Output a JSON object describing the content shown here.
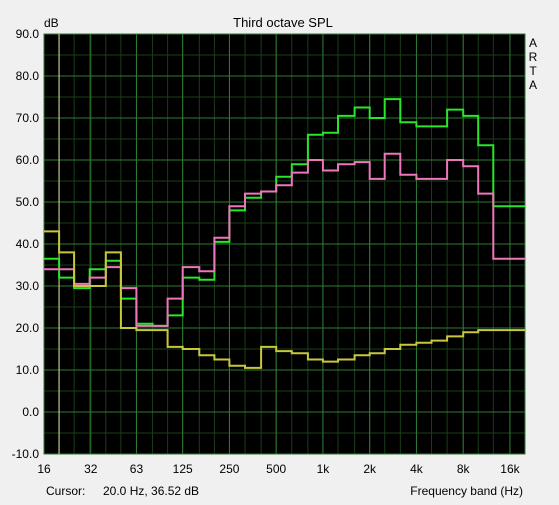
{
  "window": {
    "cursor_label": "Cursor:",
    "cursor_value": "20.0 Hz, 36.52 dB"
  },
  "colors": {
    "background": "#f0f0f0",
    "plot_background": "#000000",
    "grid_major": "#2e7d32",
    "grid_minor": "#173f17",
    "series_green": "#29e629",
    "series_pink": "#ee77bb",
    "series_yellow": "#c8c83c",
    "cursor_line": "#e6e6a0"
  },
  "chart_data": {
    "type": "line",
    "step": true,
    "title": "Third octave SPL",
    "ylabel": "dB",
    "xlabel": "Frequency band (Hz)",
    "xscale": "log",
    "xlim": [
      16,
      20000
    ],
    "ylim": [
      -10,
      90
    ],
    "grid": true,
    "brand_letters": [
      "A",
      "R",
      "T",
      "A"
    ],
    "yticks": [
      -10,
      0,
      10,
      20,
      30,
      40,
      50,
      60,
      70,
      80,
      90
    ],
    "ytick_labels": [
      "-10.0",
      "0.0",
      "10.0",
      "20.0",
      "30.0",
      "40.0",
      "50.0",
      "60.0",
      "70.0",
      "80.0",
      "90.0"
    ],
    "xticks": [
      16,
      32,
      63,
      125,
      250,
      500,
      1000,
      2000,
      4000,
      8000,
      16000
    ],
    "xtick_labels": [
      "16",
      "32",
      "63",
      "125",
      "250",
      "500",
      "1k",
      "2k",
      "4k",
      "8k",
      "16k"
    ],
    "cursor_x": 20,
    "bands": [
      16,
      20,
      25,
      31.5,
      40,
      50,
      63,
      80,
      100,
      125,
      160,
      200,
      250,
      315,
      400,
      500,
      630,
      800,
      1000,
      1250,
      1600,
      2000,
      2500,
      3150,
      4000,
      5000,
      6300,
      8000,
      10000,
      12500,
      16000,
      20000
    ],
    "series": [
      {
        "color": "#29e629",
        "values": [
          36.5,
          32,
          29.5,
          34,
          36,
          27,
          21,
          20.5,
          23,
          32,
          31.5,
          40.5,
          48,
          51,
          52.5,
          56,
          59,
          66,
          66.5,
          70.5,
          72.5,
          70,
          74.5,
          69,
          68,
          68,
          72,
          70.5,
          63.5,
          49,
          49
        ]
      },
      {
        "color": "#ee77bb",
        "values": [
          34,
          34,
          30.5,
          32,
          34.5,
          29.5,
          20.5,
          20.5,
          27,
          34.5,
          33.5,
          41.5,
          49,
          52,
          52.5,
          54,
          57,
          60,
          57.5,
          59,
          59.5,
          55.5,
          61.5,
          56.5,
          55.5,
          55.5,
          60,
          58.5,
          52,
          36.5,
          36.5
        ]
      },
      {
        "color": "#c8c83c",
        "values": [
          43,
          38,
          30,
          30,
          38,
          20,
          19.5,
          19.5,
          15.5,
          15,
          13.5,
          12.5,
          11,
          10.5,
          15.5,
          14.5,
          14,
          12.5,
          12,
          12.5,
          13.5,
          14,
          15,
          16,
          16.5,
          17,
          18,
          19,
          19.5,
          19.5,
          19.5
        ]
      }
    ]
  }
}
